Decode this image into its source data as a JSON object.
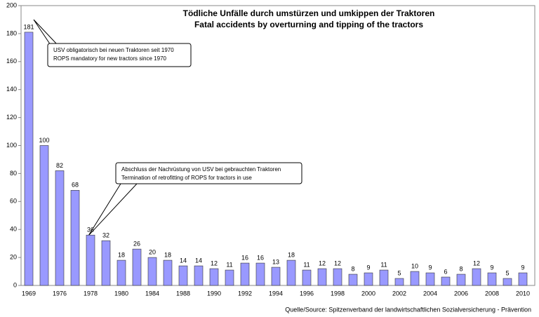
{
  "chart_data": {
    "type": "bar",
    "title": "Tödliche Unfälle durch umstürzen und umkippen der Traktoren",
    "subtitle": "Fatal accidents by overturning and tipping of the tractors",
    "categories": [
      "1969",
      null,
      "1976",
      null,
      "1978",
      null,
      "1980",
      null,
      "1984",
      null,
      "1988",
      null,
      "1990",
      null,
      "1992",
      null,
      "1994",
      null,
      "1996",
      null,
      "1998",
      null,
      "2000",
      null,
      "2002",
      null,
      "2004",
      null,
      "2006",
      null,
      "2008",
      null,
      "2010"
    ],
    "values": [
      181,
      100,
      82,
      68,
      36,
      32,
      18,
      26,
      20,
      18,
      14,
      14,
      12,
      11,
      16,
      16,
      13,
      18,
      11,
      12,
      12,
      8,
      9,
      11,
      5,
      10,
      9,
      6,
      8,
      12,
      9,
      5,
      9
    ],
    "color": "#9999ff",
    "ylim": [
      0,
      200
    ],
    "yticks": [
      0,
      20,
      40,
      60,
      80,
      100,
      120,
      140,
      160,
      180,
      200
    ],
    "grid": false,
    "annotations": [
      {
        "lines": [
          "USV obligatorisch bei neuen Traktoren seit 1970",
          "ROPS mandatory for new tractors since 1970"
        ]
      },
      {
        "lines": [
          "Abschluss der Nachrüstung von USV bei gebrauchten Traktoren",
          "Termination of retrofitting of ROPS for tractors in use"
        ]
      }
    ],
    "source": "Quelle/Source:  Spitzenverband der landwirtschaftlichen Sozialversicherung - Prävention"
  }
}
